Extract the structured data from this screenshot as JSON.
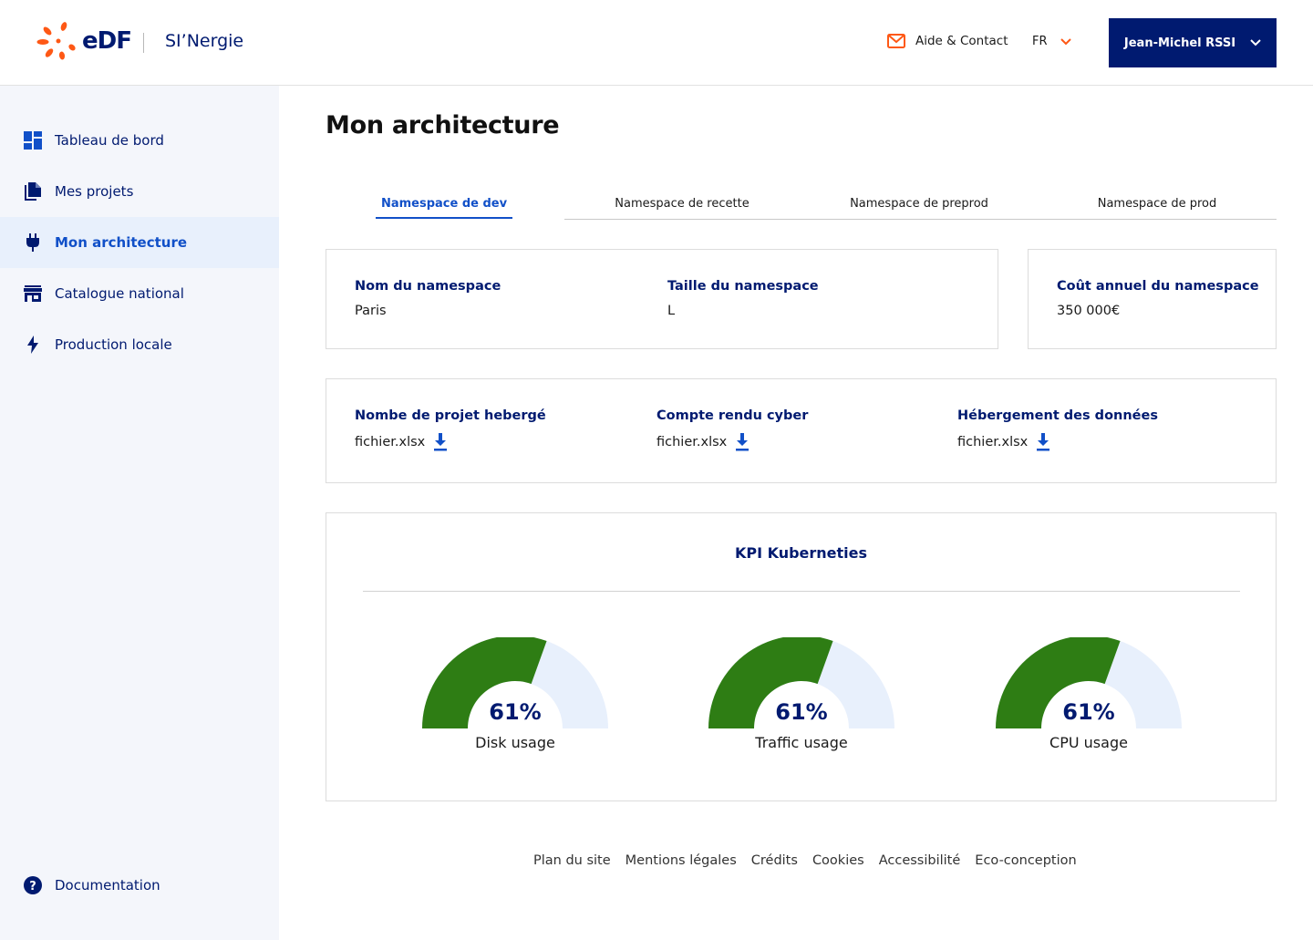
{
  "header": {
    "logo_text": "eDF",
    "app_name": "SI’Nergie",
    "help_label": "Aide & Contact",
    "language": "FR",
    "user_name": "Jean-Michel RSSI"
  },
  "sidebar": {
    "items": [
      {
        "label": "Tableau de bord",
        "icon": "dashboard-icon"
      },
      {
        "label": "Mes projets",
        "icon": "documents-icon"
      },
      {
        "label": "Mon architecture",
        "icon": "plug-icon",
        "active": true
      },
      {
        "label": "Catalogue national",
        "icon": "store-icon"
      },
      {
        "label": "Production locale",
        "icon": "lightning-icon"
      }
    ],
    "documentation": {
      "label": "Documentation",
      "icon": "help-circle-icon"
    }
  },
  "main": {
    "title": "Mon architecture",
    "tabs": [
      {
        "label": "Namespace de dev",
        "active": true
      },
      {
        "label": "Namespace de recette"
      },
      {
        "label": "Namespace de preprod"
      },
      {
        "label": "Namespace de prod"
      }
    ],
    "namespace_card": {
      "name_label": "Nom du namespace",
      "name_value": "Paris",
      "size_label": "Taille du namespace",
      "size_value": "L"
    },
    "cost_card": {
      "label": "Coût annuel du namespace",
      "value": "350 000€"
    },
    "files_card": {
      "items": [
        {
          "label": "Nombe de projet hebergé",
          "file": "fichier.xlsx"
        },
        {
          "label": "Compte rendu cyber",
          "file": "fichier.xlsx"
        },
        {
          "label": "Hébergement des données",
          "file": "fichier.xlsx"
        }
      ]
    },
    "kpi": {
      "title": "KPI Kuberneties",
      "gauges": [
        {
          "value_text": "61%",
          "value": 61,
          "label": "Disk usage"
        },
        {
          "value_text": "61%",
          "value": 61,
          "label": "Traffic usage"
        },
        {
          "value_text": "61%",
          "value": 61,
          "label": "CPU usage"
        }
      ]
    }
  },
  "footer": {
    "links": [
      "Plan du site",
      "Mentions légales",
      "Crédits",
      "Cookies",
      "Accessibilité",
      "Eco-conception"
    ]
  },
  "colors": {
    "brand_navy": "#001a70",
    "accent_blue": "#1150c8",
    "edf_orange": "#fe5815",
    "gauge_green": "#2e7d14",
    "gauge_track": "#e8f0fc"
  }
}
